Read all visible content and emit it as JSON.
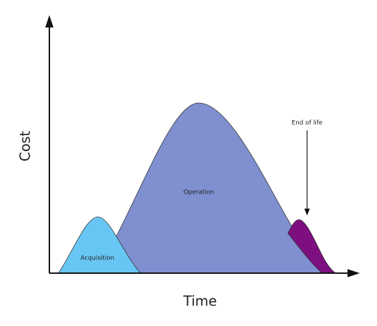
{
  "axes": {
    "y_label": "Cost",
    "x_label": "Time"
  },
  "phases": [
    {
      "label": "Acquisition"
    },
    {
      "label": "Operation"
    },
    {
      "label": "End of life"
    }
  ]
}
